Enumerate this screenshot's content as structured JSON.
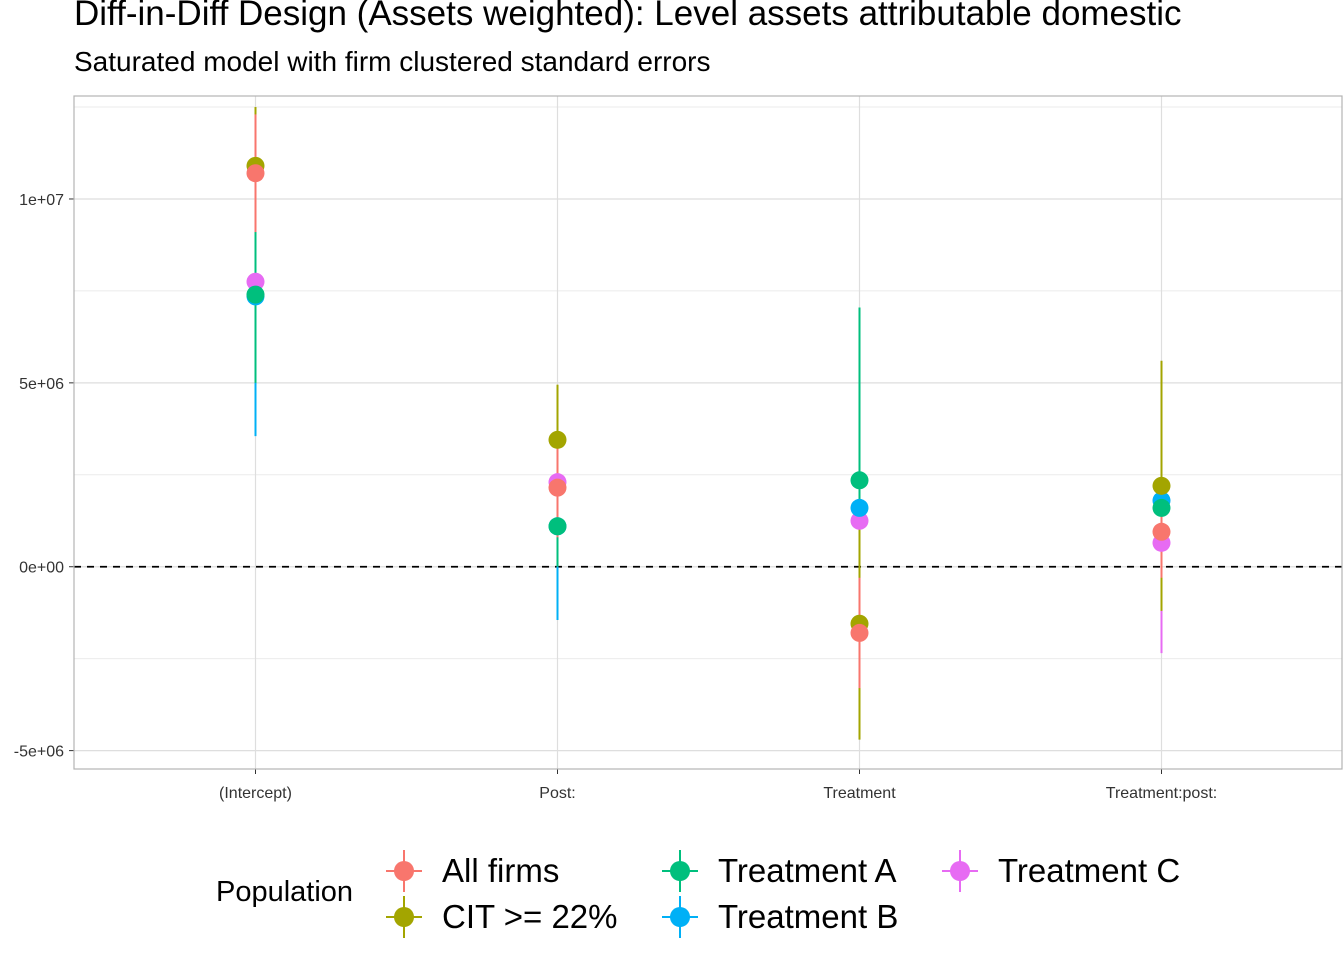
{
  "title": "Diff-in-Diff Design (Assets weighted): Level assets attributable domestic",
  "subtitle": "Saturated model with firm clustered standard errors",
  "chart_data": {
    "type": "scatter",
    "title": "Diff-in-Diff Design (Assets weighted): Level assets attributable domestic",
    "subtitle": "Saturated model with firm clustered standard errors",
    "xlabel": "",
    "ylabel": "",
    "categories": [
      "(Intercept)",
      "Post:",
      "Treatment",
      "Treatment:post:"
    ],
    "ylim": [
      -5500000,
      12800000
    ],
    "yticks": [
      -5000000,
      0,
      5000000,
      10000000
    ],
    "ytick_labels": [
      "-5e+06",
      "0e+00",
      "5e+06",
      "1e+07"
    ],
    "reference_line": 0,
    "grid": true,
    "legend_title": "Population",
    "legend_position": "bottom",
    "series": [
      {
        "name": "All firms",
        "color": "#F8766D",
        "values": [
          10700000,
          2150000,
          -1800000,
          950000
        ],
        "lower": [
          9100000,
          800000,
          -3300000,
          -300000
        ],
        "upper": [
          12300000,
          3500000,
          -300000,
          2200000
        ]
      },
      {
        "name": "CIT >= 22%",
        "color": "#A3A500",
        "values": [
          10900000,
          3450000,
          -1550000,
          2200000
        ],
        "lower": [
          9300000,
          1950000,
          -4700000,
          -1200000
        ],
        "upper": [
          12500000,
          4950000,
          1600000,
          5600000
        ]
      },
      {
        "name": "Treatment A",
        "color": "#00BF7D",
        "values": [
          7400000,
          1100000,
          2350000,
          1600000
        ],
        "lower": [
          5000000,
          0,
          -2300000,
          500000
        ],
        "upper": [
          9300000,
          2300000,
          7050000,
          2700000
        ]
      },
      {
        "name": "Treatment B",
        "color": "#00B0F6",
        "values": [
          7350000,
          1100000,
          1600000,
          1800000
        ],
        "lower": [
          3550000,
          -1450000,
          -2000000,
          800000
        ],
        "upper": [
          9100000,
          2500000,
          5000000,
          2800000
        ]
      },
      {
        "name": "Treatment C",
        "color": "#E76BF3",
        "values": [
          7750000,
          2300000,
          1250000,
          650000
        ],
        "lower": [
          5000000,
          1000000,
          -2300000,
          -2350000
        ],
        "upper": [
          9400000,
          3500000,
          4900000,
          2400000
        ]
      }
    ]
  }
}
